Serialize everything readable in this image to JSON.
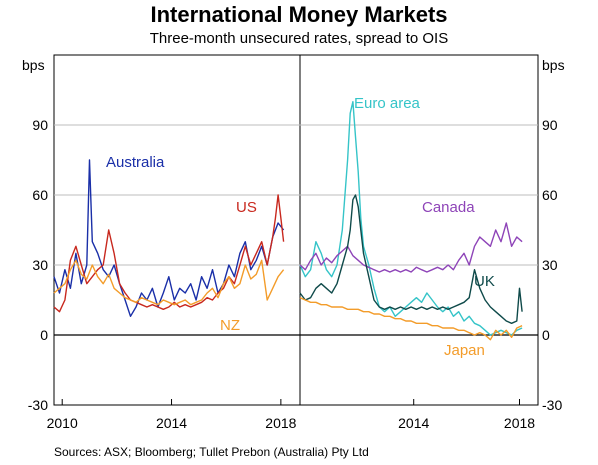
{
  "header": {
    "title": "International Money Markets",
    "subtitle": "Three-month unsecured rates, spread to OIS"
  },
  "footer": {
    "sources": "Sources:   ASX; Bloomberg; Tullet Prebon (Australia) Pty Ltd"
  },
  "chart_data": [
    {
      "type": "line",
      "panel": "left",
      "ylabel": "bps",
      "ylim": [
        -30,
        120
      ],
      "yticks": [
        -30,
        0,
        30,
        60,
        90
      ],
      "xlim": [
        2009.7,
        2018.7
      ],
      "xticks": [
        2010,
        2014,
        2018
      ],
      "grid": true,
      "series": [
        {
          "name": "Australia",
          "color": "#1a2fa8",
          "x": [
            2009.7,
            2009.9,
            2010.1,
            2010.3,
            2010.5,
            2010.7,
            2010.9,
            2011.0,
            2011.1,
            2011.3,
            2011.5,
            2011.7,
            2011.9,
            2012.1,
            2012.3,
            2012.5,
            2012.7,
            2012.9,
            2013.1,
            2013.3,
            2013.5,
            2013.7,
            2013.9,
            2014.1,
            2014.3,
            2014.5,
            2014.7,
            2014.9,
            2015.1,
            2015.3,
            2015.5,
            2015.7,
            2015.9,
            2016.1,
            2016.3,
            2016.5,
            2016.7,
            2016.9,
            2017.1,
            2017.3,
            2017.5,
            2017.7,
            2017.9,
            2018.1
          ],
          "y": [
            25,
            18,
            28,
            20,
            35,
            22,
            30,
            75,
            40,
            35,
            28,
            25,
            30,
            22,
            15,
            8,
            12,
            18,
            15,
            20,
            12,
            18,
            25,
            15,
            20,
            18,
            22,
            15,
            25,
            20,
            28,
            18,
            22,
            30,
            25,
            35,
            40,
            28,
            32,
            38,
            30,
            42,
            48,
            45
          ]
        },
        {
          "name": "US",
          "color": "#c8281e",
          "x": [
            2009.7,
            2009.9,
            2010.1,
            2010.3,
            2010.5,
            2010.7,
            2010.9,
            2011.1,
            2011.3,
            2011.5,
            2011.7,
            2011.9,
            2012.1,
            2012.3,
            2012.5,
            2012.7,
            2012.9,
            2013.1,
            2013.3,
            2013.5,
            2013.7,
            2013.9,
            2014.1,
            2014.3,
            2014.5,
            2014.7,
            2014.9,
            2015.1,
            2015.3,
            2015.5,
            2015.7,
            2015.9,
            2016.1,
            2016.3,
            2016.5,
            2016.7,
            2016.9,
            2017.1,
            2017.3,
            2017.5,
            2017.7,
            2017.8,
            2017.9,
            2018.0,
            2018.1
          ],
          "y": [
            12,
            10,
            15,
            32,
            38,
            30,
            22,
            25,
            28,
            30,
            45,
            35,
            22,
            18,
            15,
            14,
            13,
            12,
            13,
            12,
            11,
            12,
            14,
            12,
            13,
            12,
            13,
            14,
            16,
            15,
            18,
            20,
            25,
            22,
            30,
            38,
            30,
            35,
            40,
            30,
            42,
            50,
            60,
            50,
            40
          ]
        },
        {
          "name": "NZ",
          "color": "#f39c2a",
          "x": [
            2009.7,
            2009.9,
            2010.1,
            2010.3,
            2010.5,
            2010.7,
            2010.9,
            2011.1,
            2011.3,
            2011.5,
            2011.7,
            2011.9,
            2012.1,
            2012.3,
            2012.5,
            2012.7,
            2012.9,
            2013.1,
            2013.3,
            2013.5,
            2013.7,
            2013.9,
            2014.1,
            2014.3,
            2014.5,
            2014.7,
            2014.9,
            2015.1,
            2015.3,
            2015.5,
            2015.7,
            2015.9,
            2016.1,
            2016.3,
            2016.5,
            2016.7,
            2016.9,
            2017.1,
            2017.3,
            2017.5,
            2017.7,
            2017.9,
            2018.1
          ],
          "y": [
            18,
            20,
            22,
            28,
            32,
            26,
            24,
            30,
            25,
            22,
            26,
            20,
            18,
            16,
            15,
            14,
            16,
            15,
            14,
            13,
            15,
            14,
            13,
            14,
            15,
            13,
            14,
            15,
            18,
            20,
            16,
            22,
            25,
            20,
            22,
            30,
            24,
            26,
            32,
            15,
            20,
            25,
            28
          ]
        }
      ],
      "annotations": [
        {
          "text": "Australia",
          "series": "Australia"
        },
        {
          "text": "US",
          "series": "US"
        },
        {
          "text": "NZ",
          "series": "NZ"
        }
      ]
    },
    {
      "type": "line",
      "panel": "right",
      "ylabel": "bps",
      "ylim": [
        -30,
        120
      ],
      "yticks": [
        -30,
        0,
        30,
        60,
        90
      ],
      "xlim": [
        2009.7,
        2018.7
      ],
      "xticks": [
        2014,
        2018
      ],
      "grid": true,
      "series": [
        {
          "name": "Euro area",
          "color": "#35c4c8",
          "x": [
            2009.7,
            2009.9,
            2010.1,
            2010.3,
            2010.5,
            2010.7,
            2010.9,
            2011.1,
            2011.3,
            2011.5,
            2011.6,
            2011.7,
            2011.8,
            2011.9,
            2012.0,
            2012.1,
            2012.3,
            2012.5,
            2012.7,
            2012.9,
            2013.1,
            2013.3,
            2013.5,
            2013.7,
            2013.9,
            2014.1,
            2014.3,
            2014.5,
            2014.7,
            2014.9,
            2015.1,
            2015.3,
            2015.5,
            2015.7,
            2015.9,
            2016.1,
            2016.3,
            2016.5,
            2016.7,
            2016.9,
            2017.1,
            2017.3,
            2017.5,
            2017.7,
            2017.9,
            2018.1
          ],
          "y": [
            30,
            25,
            28,
            40,
            35,
            28,
            25,
            30,
            45,
            75,
            95,
            100,
            85,
            70,
            50,
            38,
            30,
            20,
            12,
            10,
            12,
            8,
            10,
            12,
            14,
            16,
            14,
            18,
            15,
            12,
            10,
            12,
            8,
            10,
            6,
            8,
            5,
            4,
            2,
            0,
            1,
            2,
            1,
            0,
            2,
            3
          ]
        },
        {
          "name": "Canada",
          "color": "#8e44b8",
          "x": [
            2009.7,
            2009.9,
            2010.1,
            2010.3,
            2010.5,
            2010.7,
            2010.9,
            2011.1,
            2011.3,
            2011.5,
            2011.7,
            2011.9,
            2012.1,
            2012.3,
            2012.5,
            2012.7,
            2012.9,
            2013.1,
            2013.3,
            2013.5,
            2013.7,
            2013.9,
            2014.1,
            2014.3,
            2014.5,
            2014.7,
            2014.9,
            2015.1,
            2015.3,
            2015.5,
            2015.7,
            2015.9,
            2016.1,
            2016.3,
            2016.5,
            2016.7,
            2016.9,
            2017.1,
            2017.3,
            2017.5,
            2017.7,
            2017.9,
            2018.1
          ],
          "y": [
            30,
            28,
            32,
            35,
            30,
            33,
            31,
            34,
            36,
            38,
            34,
            32,
            30,
            29,
            28,
            27,
            28,
            27,
            28,
            27,
            28,
            27,
            29,
            28,
            27,
            28,
            29,
            28,
            30,
            28,
            32,
            35,
            30,
            38,
            42,
            40,
            38,
            45,
            40,
            48,
            38,
            42,
            40
          ]
        },
        {
          "name": "UK",
          "color": "#0f4a4a",
          "x": [
            2009.7,
            2009.9,
            2010.1,
            2010.3,
            2010.5,
            2010.7,
            2010.9,
            2011.1,
            2011.3,
            2011.5,
            2011.6,
            2011.7,
            2011.8,
            2011.9,
            2012.0,
            2012.1,
            2012.3,
            2012.5,
            2012.7,
            2012.9,
            2013.1,
            2013.3,
            2013.5,
            2013.7,
            2013.9,
            2014.1,
            2014.3,
            2014.5,
            2014.7,
            2014.9,
            2015.1,
            2015.3,
            2015.5,
            2015.7,
            2015.9,
            2016.1,
            2016.3,
            2016.5,
            2016.7,
            2016.9,
            2017.1,
            2017.3,
            2017.5,
            2017.7,
            2017.9,
            2018.0,
            2018.1
          ],
          "y": [
            18,
            15,
            16,
            20,
            22,
            20,
            18,
            22,
            30,
            38,
            45,
            58,
            60,
            55,
            45,
            35,
            25,
            15,
            12,
            11,
            12,
            11,
            12,
            11,
            12,
            11,
            12,
            11,
            12,
            11,
            12,
            11,
            12,
            13,
            14,
            16,
            28,
            20,
            15,
            12,
            10,
            8,
            6,
            5,
            6,
            20,
            10
          ]
        },
        {
          "name": "Japan",
          "color": "#f39c2a",
          "x": [
            2009.7,
            2009.9,
            2010.1,
            2010.3,
            2010.5,
            2010.7,
            2010.9,
            2011.1,
            2011.3,
            2011.5,
            2011.7,
            2011.9,
            2012.1,
            2012.3,
            2012.5,
            2012.7,
            2012.9,
            2013.1,
            2013.3,
            2013.5,
            2013.7,
            2013.9,
            2014.1,
            2014.3,
            2014.5,
            2014.7,
            2014.9,
            2015.1,
            2015.3,
            2015.5,
            2015.7,
            2015.9,
            2016.1,
            2016.3,
            2016.5,
            2016.7,
            2016.9,
            2017.1,
            2017.3,
            2017.5,
            2017.7,
            2017.9,
            2018.1
          ],
          "y": [
            16,
            15,
            14,
            14,
            13,
            13,
            12,
            12,
            12,
            11,
            11,
            11,
            10,
            10,
            9,
            9,
            8,
            8,
            7,
            7,
            6,
            6,
            5,
            5,
            5,
            4,
            4,
            3,
            3,
            3,
            2,
            2,
            1,
            0,
            1,
            0,
            -2,
            2,
            0,
            2,
            -1,
            3,
            4
          ]
        }
      ],
      "annotations": [
        {
          "text": "Euro area",
          "series": "Euro area"
        },
        {
          "text": "Canada",
          "series": "Canada"
        },
        {
          "text": "UK",
          "series": "UK"
        },
        {
          "text": "Japan",
          "series": "Japan"
        }
      ]
    }
  ]
}
